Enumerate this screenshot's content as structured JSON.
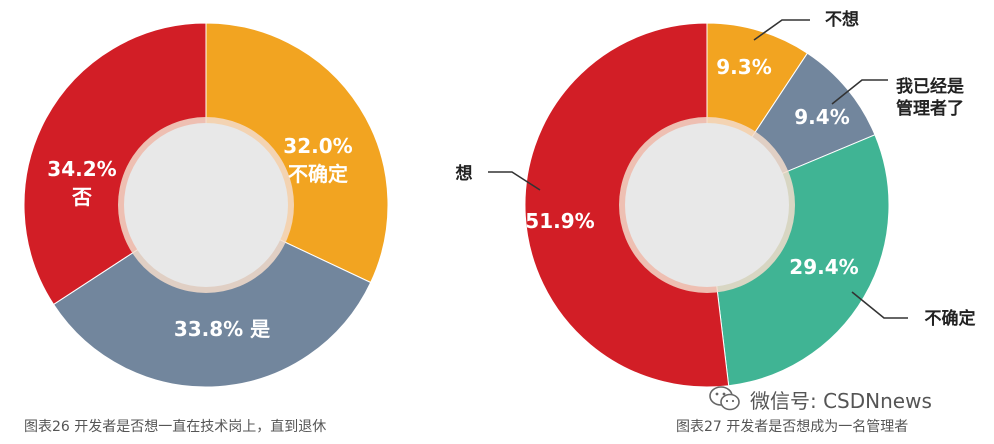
{
  "chart_data": [
    {
      "type": "pie",
      "donut": true,
      "caption": "图表26 开发者是否想一直在技术岗上，直到退休",
      "slices": [
        {
          "label": "不确定",
          "value": 32.0,
          "display": "32.0%",
          "color": "#F2A421"
        },
        {
          "label": "是",
          "value": 33.8,
          "display": "33.8%",
          "color": "#72869D"
        },
        {
          "label": "否",
          "value": 34.2,
          "display": "34.2%",
          "color": "#D21E26"
        }
      ]
    },
    {
      "type": "pie",
      "donut": true,
      "caption": "图表27 开发者是否想成为一名管理者",
      "slices": [
        {
          "label": "不想",
          "value": 9.3,
          "display": "9.3%",
          "color": "#F2A421"
        },
        {
          "label": "我已经是管理者了",
          "value": 9.4,
          "display": "9.4%",
          "color": "#72869D"
        },
        {
          "label": "不确定",
          "value": 29.4,
          "display": "29.4%",
          "color": "#40B494"
        },
        {
          "label": "想",
          "value": 51.9,
          "display": "51.9%",
          "color": "#D21E26"
        }
      ]
    }
  ],
  "watermark": {
    "text": "微信号: CSDNnews",
    "icon": "wechat-icon"
  },
  "colors": {
    "center_fill": "#E8E8E8",
    "center_ring": "#F3DCCB",
    "caption_text": "#555555"
  }
}
